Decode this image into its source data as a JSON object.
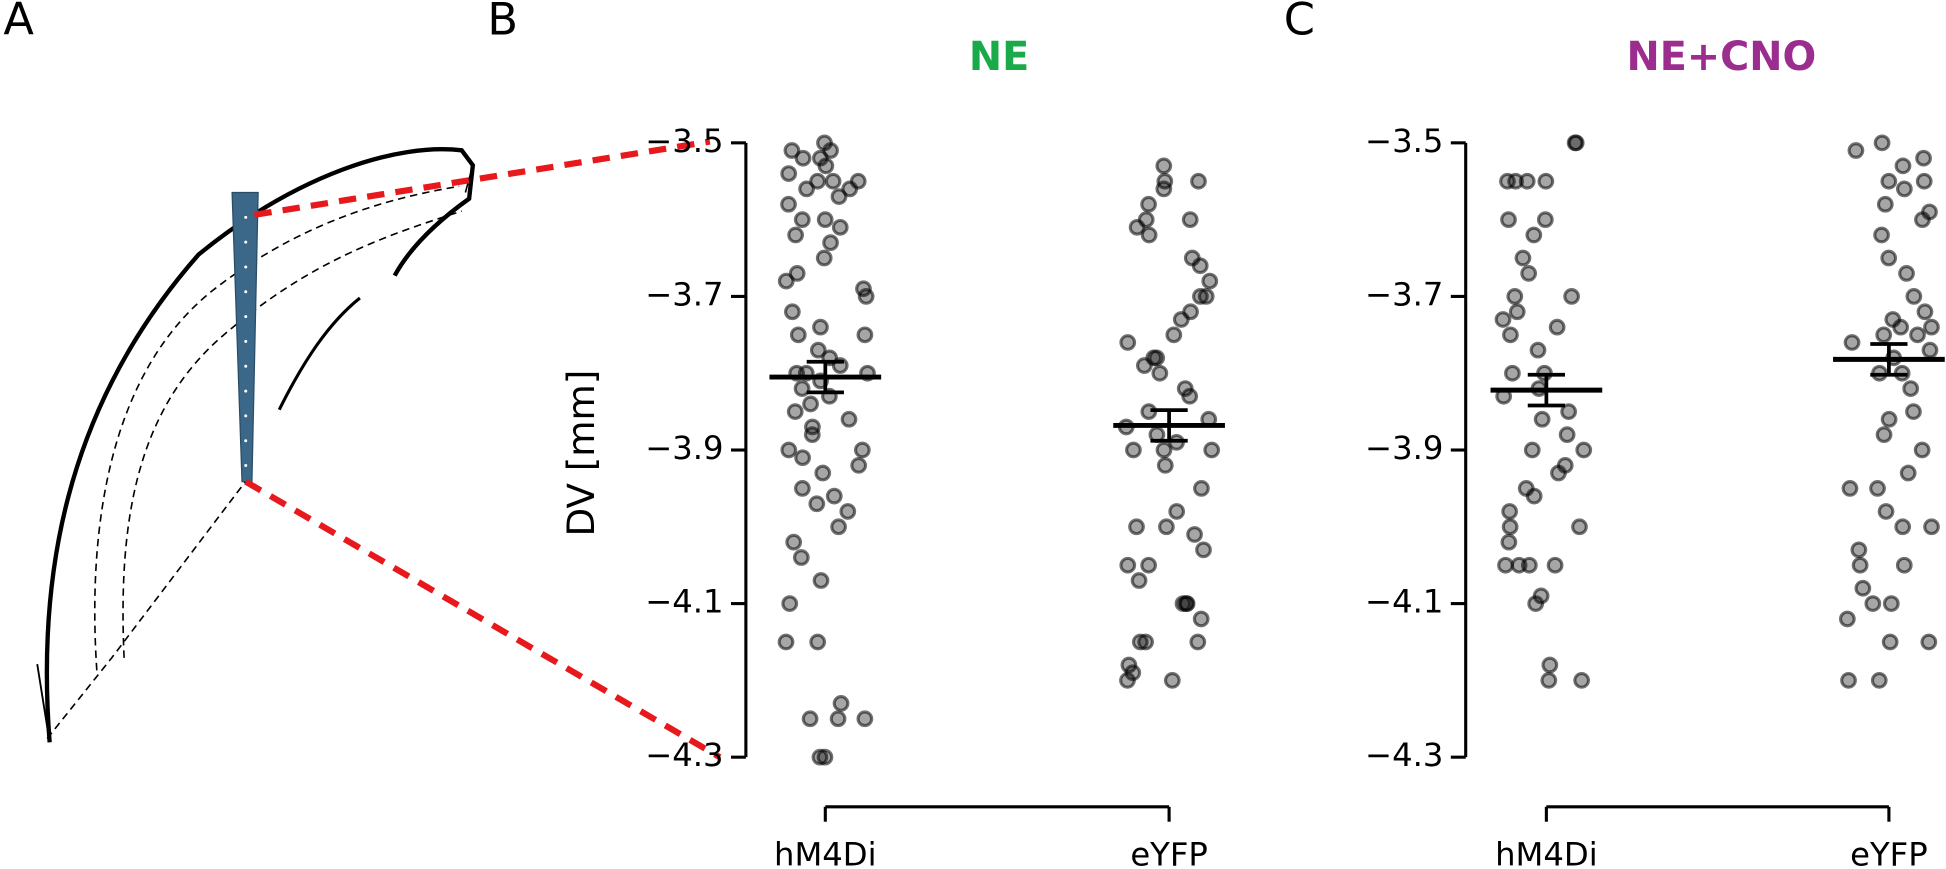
{
  "panel_labels": [
    "A",
    "B",
    "C"
  ],
  "chart_data": [
    {
      "type": "strip",
      "title": "NE",
      "title_color": "#1aaa4a",
      "ylabel": "DV [mm]",
      "categories": [
        "hM4Di",
        "eYFP"
      ],
      "ylim": [
        -4.3,
        -3.5
      ],
      "yticks": [
        {
          "value": -3.5,
          "label": "−3.5"
        },
        {
          "value": -3.7,
          "label": "−3.7"
        },
        {
          "value": -3.9,
          "label": "−3.9"
        },
        {
          "value": -4.1,
          "label": "−4.1"
        },
        {
          "value": -4.3,
          "label": "−4.3"
        }
      ],
      "values": [
        [
          -3.5,
          -3.51,
          -3.51,
          -3.52,
          -3.52,
          -3.53,
          -3.54,
          -3.55,
          -3.55,
          -3.55,
          -3.56,
          -3.56,
          -3.57,
          -3.58,
          -3.6,
          -3.6,
          -3.61,
          -3.62,
          -3.63,
          -3.65,
          -3.67,
          -3.68,
          -3.69,
          -3.7,
          -3.72,
          -3.74,
          -3.75,
          -3.75,
          -3.77,
          -3.78,
          -3.79,
          -3.8,
          -3.8,
          -3.8,
          -3.81,
          -3.82,
          -3.83,
          -3.84,
          -3.85,
          -3.86,
          -3.87,
          -3.88,
          -3.9,
          -3.9,
          -3.91,
          -3.92,
          -3.93,
          -3.95,
          -3.96,
          -3.97,
          -3.98,
          -4.0,
          -4.02,
          -4.04,
          -4.07,
          -4.1,
          -4.15,
          -4.15,
          -4.23,
          -4.25,
          -4.25,
          -4.25,
          -4.3,
          -4.3
        ],
        [
          -3.53,
          -3.55,
          -3.55,
          -3.56,
          -3.58,
          -3.6,
          -3.6,
          -3.61,
          -3.62,
          -3.65,
          -3.66,
          -3.68,
          -3.7,
          -3.7,
          -3.72,
          -3.73,
          -3.75,
          -3.76,
          -3.78,
          -3.78,
          -3.79,
          -3.8,
          -3.82,
          -3.83,
          -3.85,
          -3.86,
          -3.87,
          -3.88,
          -3.89,
          -3.9,
          -3.9,
          -3.9,
          -3.92,
          -3.95,
          -3.98,
          -4.0,
          -4.0,
          -4.01,
          -4.03,
          -4.05,
          -4.05,
          -4.07,
          -4.1,
          -4.1,
          -4.1,
          -4.12,
          -4.15,
          -4.15,
          -4.15,
          -4.18,
          -4.19,
          -4.2,
          -4.2
        ]
      ],
      "means": [
        -3.805,
        -3.868
      ],
      "sems": [
        0.02,
        0.02
      ]
    },
    {
      "type": "strip",
      "title": "NE+CNO",
      "title_color": "#9b2d8e",
      "categories": [
        "hM4Di",
        "eYFP"
      ],
      "ylim": [
        -4.3,
        -3.5
      ],
      "yticks": [
        {
          "value": -3.5,
          "label": "−3.5"
        },
        {
          "value": -3.7,
          "label": "−3.7"
        },
        {
          "value": -3.9,
          "label": "−3.9"
        },
        {
          "value": -4.1,
          "label": "−4.1"
        },
        {
          "value": -4.3,
          "label": "−4.3"
        }
      ],
      "values": [
        [
          -3.5,
          -3.5,
          -3.55,
          -3.55,
          -3.55,
          -3.55,
          -3.6,
          -3.6,
          -3.62,
          -3.65,
          -3.67,
          -3.7,
          -3.7,
          -3.72,
          -3.73,
          -3.74,
          -3.75,
          -3.77,
          -3.8,
          -3.8,
          -3.82,
          -3.83,
          -3.85,
          -3.86,
          -3.88,
          -3.9,
          -3.9,
          -3.92,
          -3.93,
          -3.95,
          -3.96,
          -3.98,
          -4.0,
          -4.0,
          -4.02,
          -4.05,
          -4.05,
          -4.05,
          -4.05,
          -4.09,
          -4.1,
          -4.18,
          -4.2,
          -4.2
        ],
        [
          -3.5,
          -3.51,
          -3.52,
          -3.53,
          -3.55,
          -3.55,
          -3.56,
          -3.58,
          -3.59,
          -3.6,
          -3.62,
          -3.65,
          -3.67,
          -3.7,
          -3.72,
          -3.73,
          -3.74,
          -3.74,
          -3.75,
          -3.75,
          -3.76,
          -3.77,
          -3.78,
          -3.8,
          -3.8,
          -3.82,
          -3.85,
          -3.86,
          -3.88,
          -3.9,
          -3.93,
          -3.95,
          -3.95,
          -3.98,
          -4.0,
          -4.0,
          -4.03,
          -4.05,
          -4.05,
          -4.08,
          -4.1,
          -4.1,
          -4.12,
          -4.15,
          -4.15,
          -4.2,
          -4.2
        ]
      ],
      "means": [
        -3.822,
        -3.782
      ],
      "sems": [
        0.02,
        0.02
      ]
    }
  ]
}
